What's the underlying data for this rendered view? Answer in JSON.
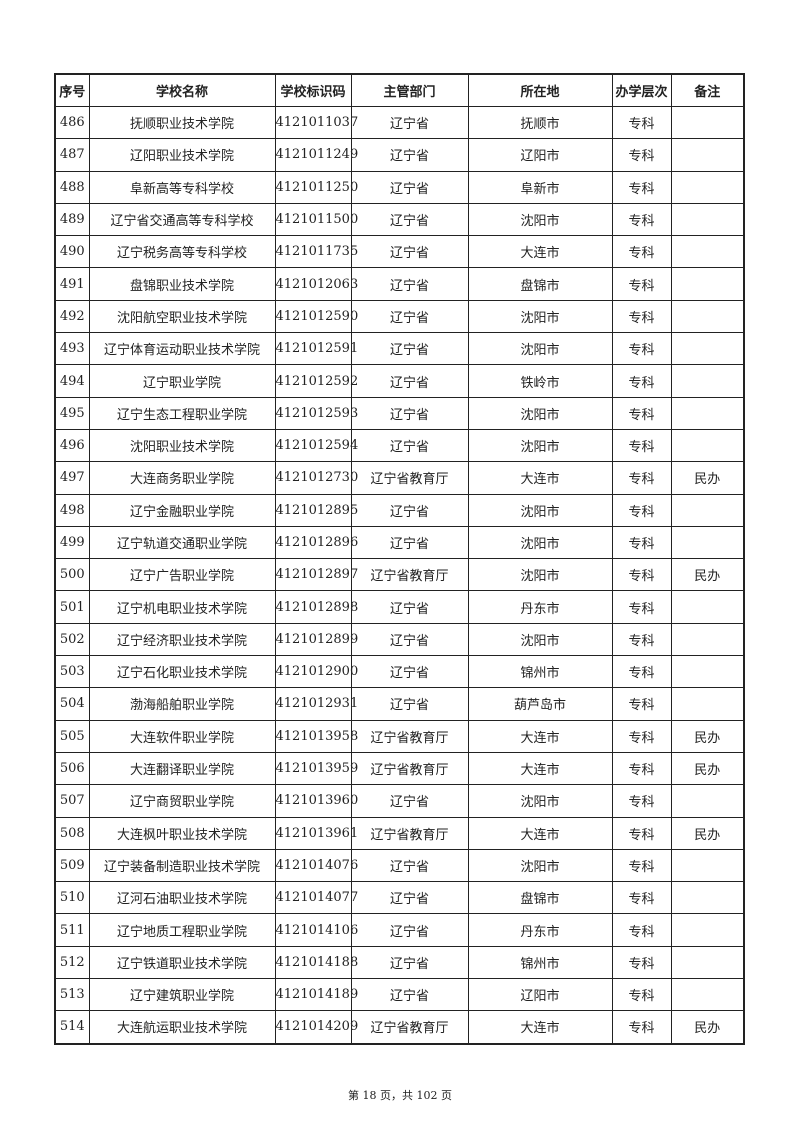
{
  "table": {
    "headers": [
      "序号",
      "学校名称",
      "学校标识码",
      "主管部门",
      "所在地",
      "办学层次",
      "备注"
    ],
    "rows": [
      [
        "486",
        "抚顺职业技术学院",
        "4121011037",
        "辽宁省",
        "抚顺市",
        "专科",
        ""
      ],
      [
        "487",
        "辽阳职业技术学院",
        "4121011249",
        "辽宁省",
        "辽阳市",
        "专科",
        ""
      ],
      [
        "488",
        "阜新高等专科学校",
        "4121011250",
        "辽宁省",
        "阜新市",
        "专科",
        ""
      ],
      [
        "489",
        "辽宁省交通高等专科学校",
        "4121011500",
        "辽宁省",
        "沈阳市",
        "专科",
        ""
      ],
      [
        "490",
        "辽宁税务高等专科学校",
        "4121011735",
        "辽宁省",
        "大连市",
        "专科",
        ""
      ],
      [
        "491",
        "盘锦职业技术学院",
        "4121012063",
        "辽宁省",
        "盘锦市",
        "专科",
        ""
      ],
      [
        "492",
        "沈阳航空职业技术学院",
        "4121012590",
        "辽宁省",
        "沈阳市",
        "专科",
        ""
      ],
      [
        "493",
        "辽宁体育运动职业技术学院",
        "4121012591",
        "辽宁省",
        "沈阳市",
        "专科",
        ""
      ],
      [
        "494",
        "辽宁职业学院",
        "4121012592",
        "辽宁省",
        "铁岭市",
        "专科",
        ""
      ],
      [
        "495",
        "辽宁生态工程职业学院",
        "4121012593",
        "辽宁省",
        "沈阳市",
        "专科",
        ""
      ],
      [
        "496",
        "沈阳职业技术学院",
        "4121012594",
        "辽宁省",
        "沈阳市",
        "专科",
        ""
      ],
      [
        "497",
        "大连商务职业学院",
        "4121012730",
        "辽宁省教育厅",
        "大连市",
        "专科",
        "民办"
      ],
      [
        "498",
        "辽宁金融职业学院",
        "4121012895",
        "辽宁省",
        "沈阳市",
        "专科",
        ""
      ],
      [
        "499",
        "辽宁轨道交通职业学院",
        "4121012896",
        "辽宁省",
        "沈阳市",
        "专科",
        ""
      ],
      [
        "500",
        "辽宁广告职业学院",
        "4121012897",
        "辽宁省教育厅",
        "沈阳市",
        "专科",
        "民办"
      ],
      [
        "501",
        "辽宁机电职业技术学院",
        "4121012898",
        "辽宁省",
        "丹东市",
        "专科",
        ""
      ],
      [
        "502",
        "辽宁经济职业技术学院",
        "4121012899",
        "辽宁省",
        "沈阳市",
        "专科",
        ""
      ],
      [
        "503",
        "辽宁石化职业技术学院",
        "4121012900",
        "辽宁省",
        "锦州市",
        "专科",
        ""
      ],
      [
        "504",
        "渤海船舶职业学院",
        "4121012931",
        "辽宁省",
        "葫芦岛市",
        "专科",
        ""
      ],
      [
        "505",
        "大连软件职业学院",
        "4121013958",
        "辽宁省教育厅",
        "大连市",
        "专科",
        "民办"
      ],
      [
        "506",
        "大连翻译职业学院",
        "4121013959",
        "辽宁省教育厅",
        "大连市",
        "专科",
        "民办"
      ],
      [
        "507",
        "辽宁商贸职业学院",
        "4121013960",
        "辽宁省",
        "沈阳市",
        "专科",
        ""
      ],
      [
        "508",
        "大连枫叶职业技术学院",
        "4121013961",
        "辽宁省教育厅",
        "大连市",
        "专科",
        "民办"
      ],
      [
        "509",
        "辽宁装备制造职业技术学院",
        "4121014076",
        "辽宁省",
        "沈阳市",
        "专科",
        ""
      ],
      [
        "510",
        "辽河石油职业技术学院",
        "4121014077",
        "辽宁省",
        "盘锦市",
        "专科",
        ""
      ],
      [
        "511",
        "辽宁地质工程职业学院",
        "4121014106",
        "辽宁省",
        "丹东市",
        "专科",
        ""
      ],
      [
        "512",
        "辽宁铁道职业技术学院",
        "4121014188",
        "辽宁省",
        "锦州市",
        "专科",
        ""
      ],
      [
        "513",
        "辽宁建筑职业学院",
        "4121014189",
        "辽宁省",
        "辽阳市",
        "专科",
        ""
      ],
      [
        "514",
        "大连航运职业技术学院",
        "4121014209",
        "辽宁省教育厅",
        "大连市",
        "专科",
        "民办"
      ]
    ]
  },
  "footer": "第 18 页，共 102 页"
}
